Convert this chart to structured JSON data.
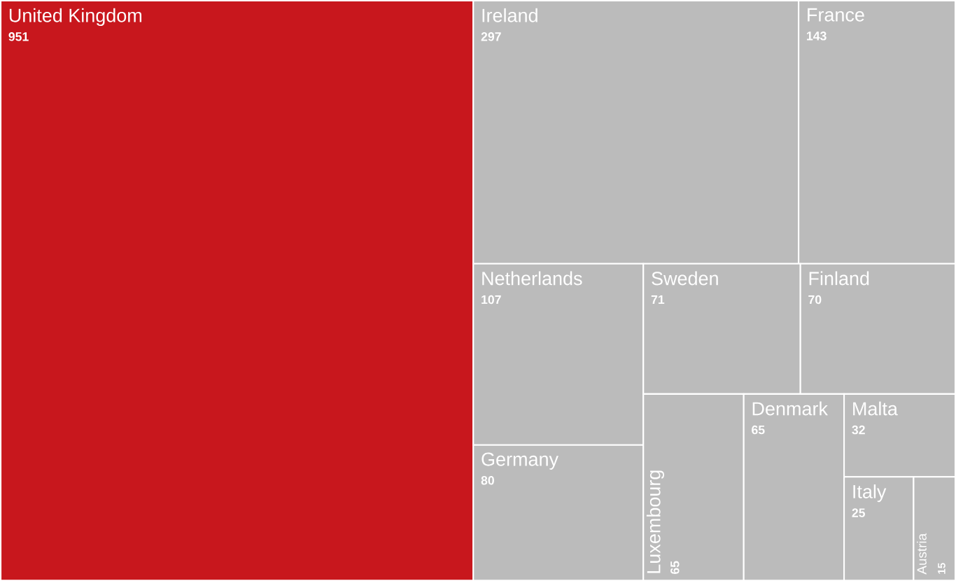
{
  "chart_data": {
    "type": "other",
    "categories": [
      "United Kingdom",
      "Ireland",
      "France",
      "Netherlands",
      "Germany",
      "Sweden",
      "Finland",
      "Luxembourg",
      "Denmark",
      "Malta",
      "Italy",
      "Austria"
    ],
    "values": [
      951,
      297,
      143,
      107,
      80,
      71,
      70,
      65,
      65,
      32,
      25,
      15
    ],
    "colors": [
      "#c8171d",
      "#bbbbbb",
      "#bbbbbb",
      "#bbbbbb",
      "#bbbbbb",
      "#bbbbbb",
      "#bbbbbb",
      "#bbbbbb",
      "#bbbbbb",
      "#bbbbbb",
      "#bbbbbb",
      "#bbbbbb"
    ],
    "data_labels": true
  }
}
